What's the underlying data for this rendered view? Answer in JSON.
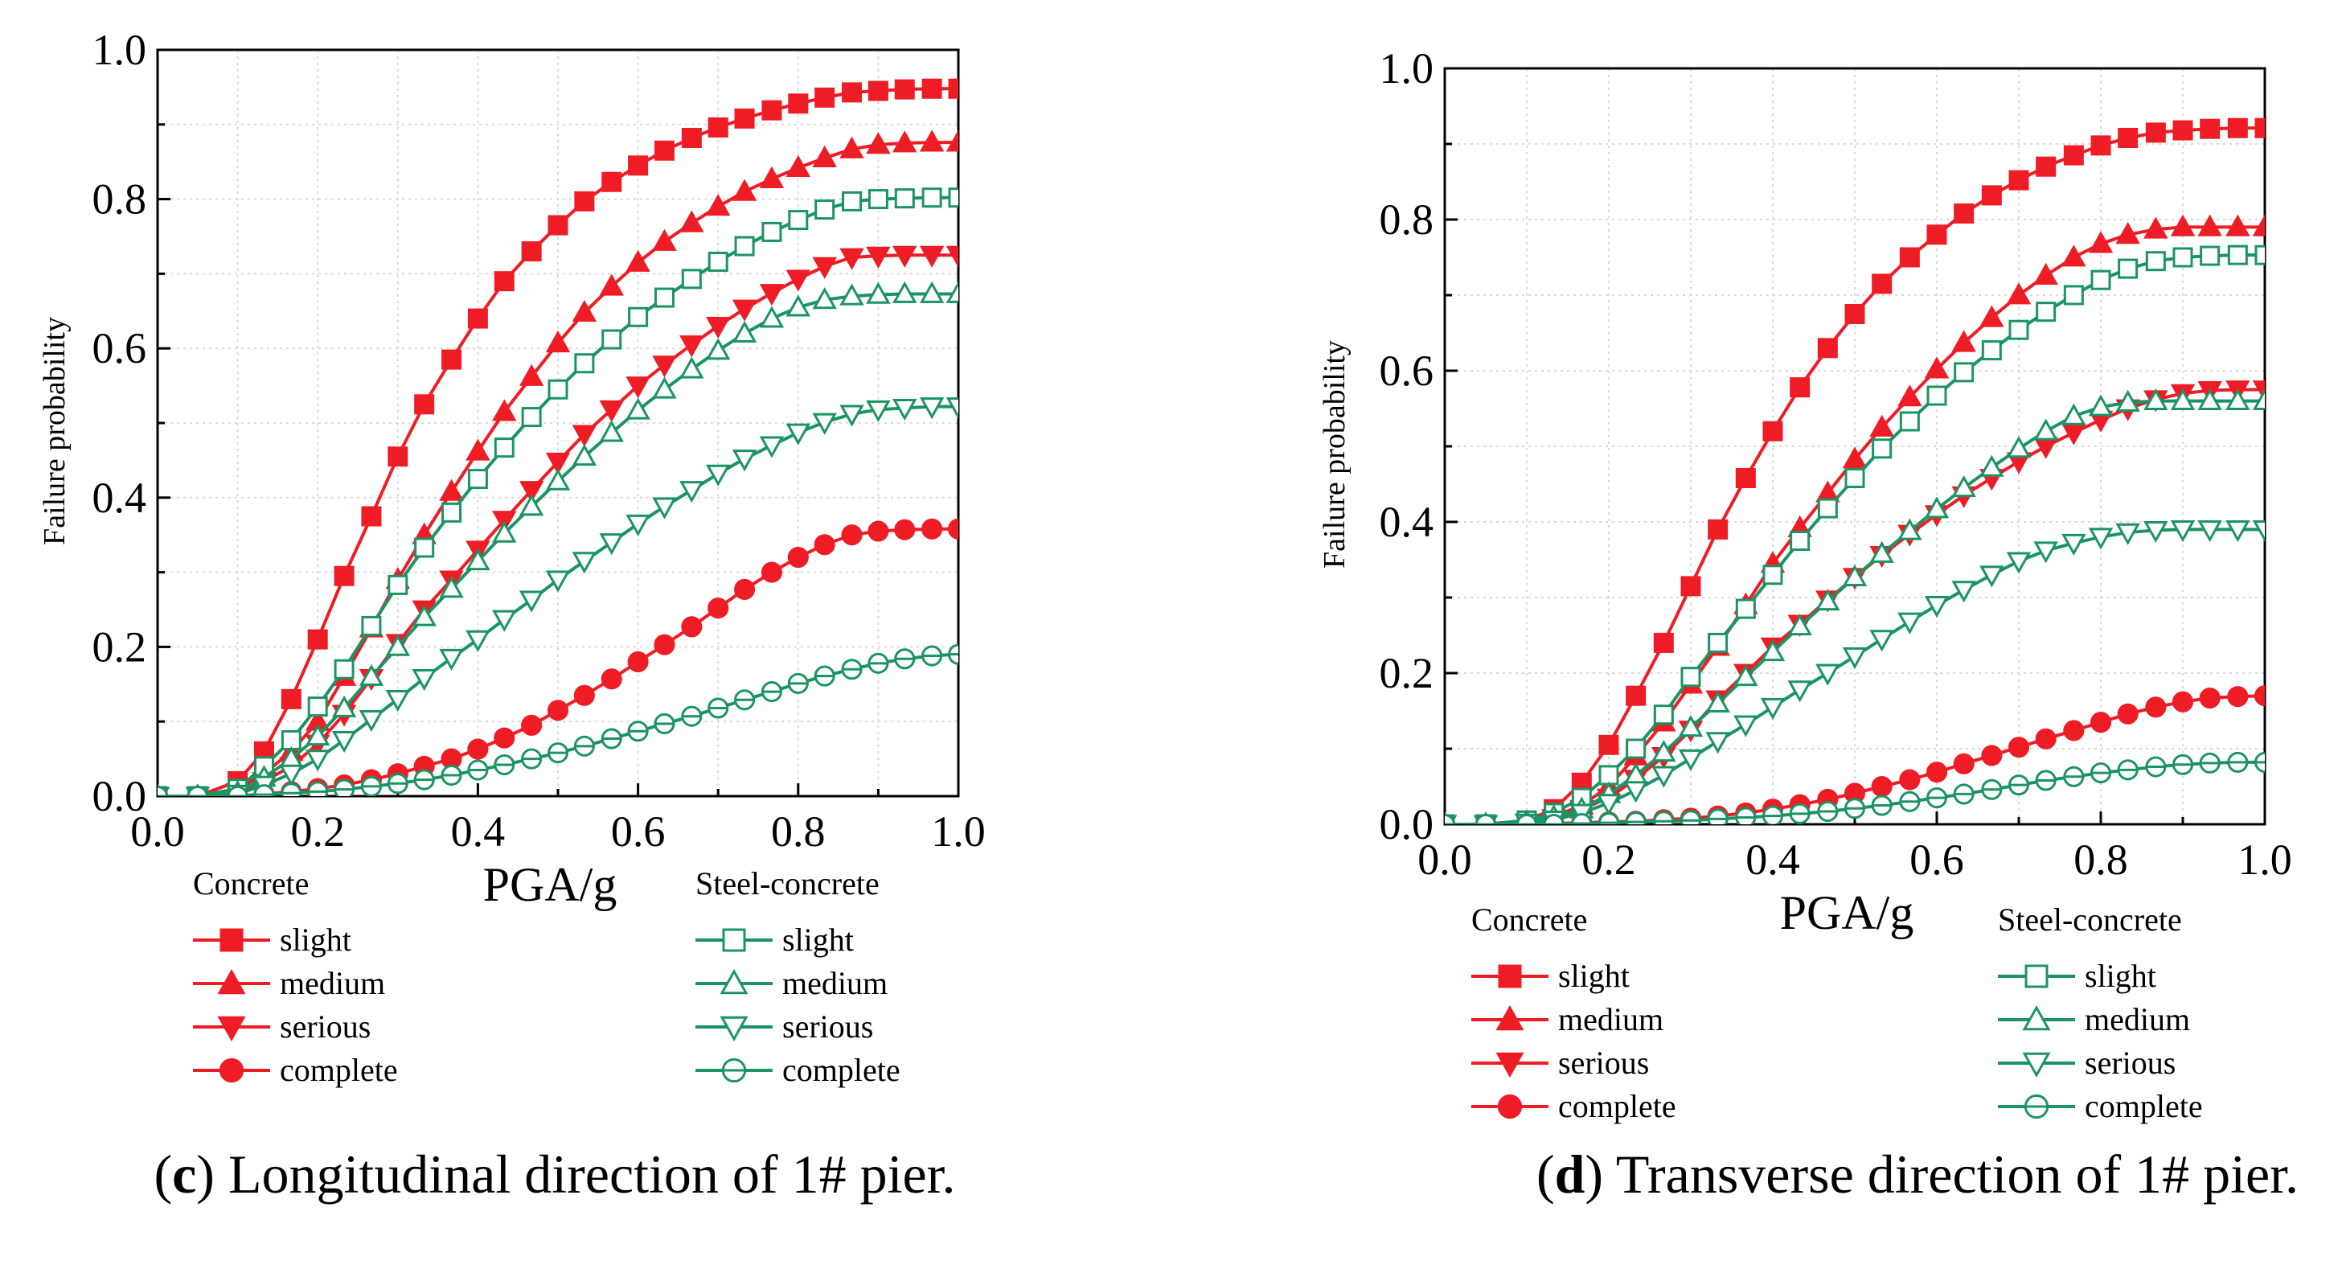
{
  "chart_data": [
    {
      "type": "line",
      "panel": "c",
      "caption_letter": "c",
      "caption_text": " Longitudinal direction of 1# pier.",
      "xlabel": "PGA/g",
      "ylabel": "Failure probability",
      "xlim": [
        0,
        1
      ],
      "ylim": [
        0,
        1
      ],
      "x_ticks": [
        "0.0",
        "0.2",
        "0.4",
        "0.6",
        "0.8",
        "1.0"
      ],
      "y_ticks": [
        "0.0",
        "0.2",
        "0.4",
        "0.6",
        "0.8",
        "1.0"
      ],
      "grid": true,
      "legend_groups": [
        "Concrete",
        "Steel-concrete"
      ],
      "x": [
        0.0,
        0.05,
        0.1,
        0.133,
        0.167,
        0.2,
        0.233,
        0.267,
        0.3,
        0.333,
        0.367,
        0.4,
        0.433,
        0.467,
        0.5,
        0.533,
        0.567,
        0.6,
        0.633,
        0.667,
        0.7,
        0.733,
        0.767,
        0.8,
        0.833,
        0.867,
        0.9,
        0.933,
        0.967,
        1.0
      ],
      "series": [
        {
          "name": "slight",
          "group": "Concrete",
          "color": "#ee1c25",
          "marker": "square",
          "filled": true,
          "values": [
            0.0,
            0.0,
            0.02,
            0.06,
            0.13,
            0.21,
            0.295,
            0.375,
            0.455,
            0.525,
            0.585,
            0.64,
            0.69,
            0.73,
            0.765,
            0.797,
            0.823,
            0.845,
            0.865,
            0.882,
            0.896,
            0.908,
            0.919,
            0.928,
            0.936,
            0.943,
            0.945,
            0.947,
            0.948,
            0.948
          ]
        },
        {
          "name": "medium",
          "group": "Concrete",
          "color": "#ee1c25",
          "marker": "triangle-up",
          "filled": true,
          "values": [
            0.0,
            0.0,
            0.01,
            0.03,
            0.06,
            0.1,
            0.16,
            0.225,
            0.29,
            0.35,
            0.408,
            0.462,
            0.515,
            0.562,
            0.607,
            0.648,
            0.683,
            0.715,
            0.743,
            0.768,
            0.79,
            0.81,
            0.827,
            0.842,
            0.855,
            0.867,
            0.873,
            0.875,
            0.876,
            0.876
          ]
        },
        {
          "name": "serious",
          "group": "Concrete",
          "color": "#ee1c25",
          "marker": "triangle-down",
          "filled": true,
          "values": [
            0.0,
            0.0,
            0.005,
            0.02,
            0.04,
            0.07,
            0.11,
            0.158,
            0.205,
            0.25,
            0.29,
            0.33,
            0.37,
            0.41,
            0.448,
            0.485,
            0.518,
            0.55,
            0.578,
            0.605,
            0.63,
            0.653,
            0.674,
            0.693,
            0.71,
            0.722,
            0.724,
            0.725,
            0.725,
            0.725
          ]
        },
        {
          "name": "complete",
          "group": "Concrete",
          "color": "#ee1c25",
          "marker": "circle",
          "filled": true,
          "values": [
            0.0,
            0.0,
            0.0,
            0.003,
            0.006,
            0.01,
            0.015,
            0.022,
            0.03,
            0.04,
            0.05,
            0.063,
            0.078,
            0.095,
            0.115,
            0.135,
            0.157,
            0.18,
            0.203,
            0.227,
            0.252,
            0.277,
            0.3,
            0.32,
            0.337,
            0.35,
            0.355,
            0.357,
            0.358,
            0.358
          ]
        },
        {
          "name": "slight",
          "group": "Steel-concrete",
          "color": "#1b9464",
          "marker": "square",
          "filled": false,
          "values": [
            0.0,
            0.0,
            0.01,
            0.04,
            0.075,
            0.12,
            0.17,
            0.228,
            0.283,
            0.333,
            0.38,
            0.425,
            0.467,
            0.508,
            0.545,
            0.58,
            0.612,
            0.642,
            0.668,
            0.693,
            0.716,
            0.737,
            0.756,
            0.772,
            0.786,
            0.797,
            0.8,
            0.801,
            0.802,
            0.802
          ]
        },
        {
          "name": "medium",
          "group": "Steel-concrete",
          "color": "#1b9464",
          "marker": "triangle-up",
          "filled": false,
          "values": [
            0.0,
            0.0,
            0.005,
            0.025,
            0.05,
            0.08,
            0.118,
            0.16,
            0.2,
            0.24,
            0.278,
            0.315,
            0.352,
            0.388,
            0.422,
            0.455,
            0.487,
            0.517,
            0.545,
            0.572,
            0.597,
            0.62,
            0.64,
            0.655,
            0.665,
            0.67,
            0.672,
            0.673,
            0.673,
            0.673
          ]
        },
        {
          "name": "serious",
          "group": "Steel-concrete",
          "color": "#1b9464",
          "marker": "triangle-down",
          "filled": false,
          "values": [
            0.0,
            0.0,
            0.003,
            0.015,
            0.03,
            0.05,
            0.075,
            0.103,
            0.13,
            0.158,
            0.185,
            0.21,
            0.237,
            0.263,
            0.29,
            0.315,
            0.34,
            0.365,
            0.388,
            0.41,
            0.432,
            0.452,
            0.47,
            0.487,
            0.501,
            0.512,
            0.518,
            0.52,
            0.522,
            0.522
          ]
        },
        {
          "name": "complete",
          "group": "Steel-concrete",
          "color": "#1b9464",
          "marker": "circle",
          "filled": false,
          "values": [
            0.0,
            0.0,
            0.0,
            0.002,
            0.004,
            0.006,
            0.009,
            0.013,
            0.017,
            0.022,
            0.028,
            0.035,
            0.042,
            0.05,
            0.058,
            0.067,
            0.077,
            0.087,
            0.097,
            0.107,
            0.118,
            0.129,
            0.14,
            0.151,
            0.161,
            0.17,
            0.178,
            0.184,
            0.188,
            0.19
          ]
        }
      ]
    },
    {
      "type": "line",
      "panel": "d",
      "caption_letter": "d",
      "caption_text": " Transverse direction of 1# pier.",
      "xlabel": "PGA/g",
      "ylabel": "Failure probability",
      "xlim": [
        0,
        1
      ],
      "ylim": [
        0,
        1
      ],
      "x_ticks": [
        "0.0",
        "0.2",
        "0.4",
        "0.6",
        "0.8",
        "1.0"
      ],
      "y_ticks": [
        "0.0",
        "0.2",
        "0.4",
        "0.6",
        "0.8",
        "1.0"
      ],
      "grid": true,
      "legend_groups": [
        "Concrete",
        "Steel-concrete"
      ],
      "x": [
        0.0,
        0.05,
        0.1,
        0.133,
        0.167,
        0.2,
        0.233,
        0.267,
        0.3,
        0.333,
        0.367,
        0.4,
        0.433,
        0.467,
        0.5,
        0.533,
        0.567,
        0.6,
        0.633,
        0.667,
        0.7,
        0.733,
        0.767,
        0.8,
        0.833,
        0.867,
        0.9,
        0.933,
        0.967,
        1.0
      ],
      "series": [
        {
          "name": "slight",
          "group": "Concrete",
          "color": "#ee1c25",
          "marker": "square",
          "filled": true,
          "values": [
            0.0,
            0.0,
            0.005,
            0.02,
            0.055,
            0.105,
            0.17,
            0.24,
            0.315,
            0.39,
            0.458,
            0.52,
            0.578,
            0.63,
            0.675,
            0.715,
            0.75,
            0.78,
            0.808,
            0.832,
            0.852,
            0.87,
            0.885,
            0.898,
            0.908,
            0.915,
            0.918,
            0.92,
            0.921,
            0.921
          ]
        },
        {
          "name": "medium",
          "group": "Concrete",
          "color": "#ee1c25",
          "marker": "triangle-up",
          "filled": true,
          "values": [
            0.0,
            0.0,
            0.002,
            0.01,
            0.025,
            0.05,
            0.09,
            0.135,
            0.185,
            0.235,
            0.29,
            0.345,
            0.392,
            0.438,
            0.483,
            0.525,
            0.565,
            0.602,
            0.637,
            0.67,
            0.7,
            0.726,
            0.75,
            0.768,
            0.78,
            0.787,
            0.79,
            0.79,
            0.79,
            0.79
          ]
        },
        {
          "name": "serious",
          "group": "Concrete",
          "color": "#ee1c25",
          "marker": "triangle-down",
          "filled": true,
          "values": [
            0.0,
            0.0,
            0.002,
            0.008,
            0.02,
            0.035,
            0.06,
            0.09,
            0.125,
            0.165,
            0.2,
            0.235,
            0.265,
            0.297,
            0.327,
            0.356,
            0.384,
            0.41,
            0.435,
            0.458,
            0.48,
            0.5,
            0.518,
            0.535,
            0.55,
            0.562,
            0.57,
            0.574,
            0.575,
            0.575
          ]
        },
        {
          "name": "complete",
          "group": "Concrete",
          "color": "#ee1c25",
          "marker": "circle",
          "filled": true,
          "values": [
            0.0,
            0.0,
            0.0,
            0.001,
            0.002,
            0.003,
            0.004,
            0.006,
            0.008,
            0.011,
            0.015,
            0.02,
            0.026,
            0.033,
            0.041,
            0.05,
            0.059,
            0.069,
            0.08,
            0.091,
            0.102,
            0.113,
            0.124,
            0.135,
            0.146,
            0.155,
            0.162,
            0.167,
            0.169,
            0.17
          ]
        },
        {
          "name": "slight",
          "group": "Steel-concrete",
          "color": "#1b9464",
          "marker": "square",
          "filled": false,
          "values": [
            0.0,
            0.0,
            0.005,
            0.015,
            0.035,
            0.065,
            0.1,
            0.145,
            0.195,
            0.24,
            0.285,
            0.33,
            0.375,
            0.418,
            0.458,
            0.497,
            0.533,
            0.567,
            0.598,
            0.627,
            0.654,
            0.678,
            0.7,
            0.72,
            0.735,
            0.745,
            0.75,
            0.752,
            0.753,
            0.753
          ]
        },
        {
          "name": "medium",
          "group": "Steel-concrete",
          "color": "#1b9464",
          "marker": "triangle-up",
          "filled": false,
          "values": [
            0.0,
            0.0,
            0.003,
            0.01,
            0.02,
            0.04,
            0.065,
            0.095,
            0.128,
            0.16,
            0.195,
            0.228,
            0.262,
            0.295,
            0.327,
            0.358,
            0.388,
            0.417,
            0.445,
            0.472,
            0.497,
            0.52,
            0.54,
            0.552,
            0.558,
            0.56,
            0.56,
            0.56,
            0.56,
            0.56
          ]
        },
        {
          "name": "serious",
          "group": "Steel-concrete",
          "color": "#1b9464",
          "marker": "triangle-down",
          "filled": false,
          "values": [
            0.0,
            0.0,
            0.002,
            0.006,
            0.015,
            0.028,
            0.045,
            0.065,
            0.087,
            0.11,
            0.132,
            0.155,
            0.178,
            0.2,
            0.222,
            0.245,
            0.268,
            0.29,
            0.31,
            0.33,
            0.348,
            0.362,
            0.372,
            0.38,
            0.386,
            0.389,
            0.39,
            0.39,
            0.39,
            0.39
          ]
        },
        {
          "name": "complete",
          "group": "Steel-concrete",
          "color": "#1b9464",
          "marker": "circle",
          "filled": false,
          "values": [
            0.0,
            0.0,
            0.0,
            0.0,
            0.001,
            0.002,
            0.003,
            0.004,
            0.005,
            0.007,
            0.009,
            0.011,
            0.014,
            0.017,
            0.021,
            0.025,
            0.03,
            0.035,
            0.04,
            0.046,
            0.052,
            0.058,
            0.063,
            0.068,
            0.072,
            0.076,
            0.079,
            0.081,
            0.082,
            0.082
          ]
        }
      ]
    }
  ]
}
